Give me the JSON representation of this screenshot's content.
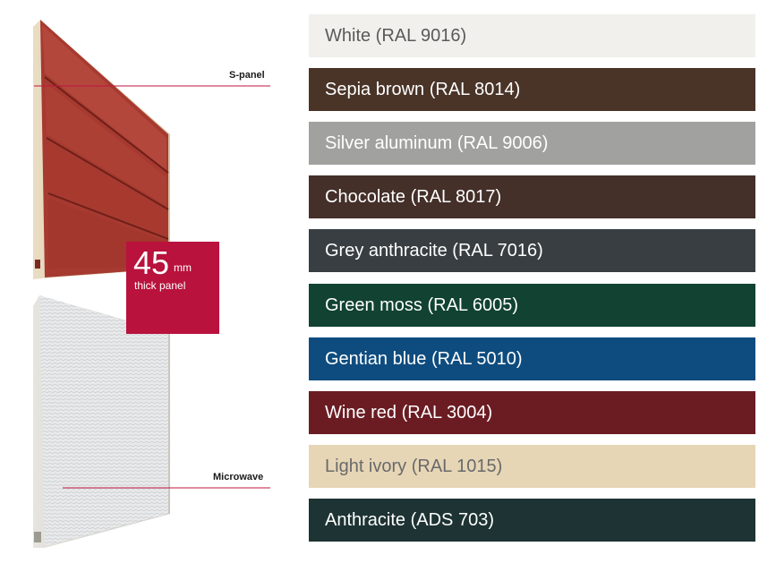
{
  "panel_labels": {
    "s_panel": "S-panel",
    "microwave": "Microwave"
  },
  "badge": {
    "number": "45",
    "unit": "mm",
    "caption": "thick panel",
    "color": "#b8123d"
  },
  "colors": [
    {
      "label": "White (RAL 9016)",
      "bg": "#f1f0ec",
      "fg": "#5a5a5a"
    },
    {
      "label": "Sepia brown (RAL 8014)",
      "bg": "#4a3428",
      "fg": "#ffffff"
    },
    {
      "label": "Silver aluminum (RAL 9006)",
      "bg": "#a1a1a0",
      "fg": "#ffffff"
    },
    {
      "label": "Chocolate (RAL 8017)",
      "bg": "#442f29",
      "fg": "#ffffff"
    },
    {
      "label": "Grey anthracite (RAL 7016)",
      "bg": "#383e42",
      "fg": "#ffffff"
    },
    {
      "label": "Green moss (RAL 6005)",
      "bg": "#114232",
      "fg": "#ffffff"
    },
    {
      "label": "Gentian blue (RAL 5010)",
      "bg": "#0e4c7f",
      "fg": "#ffffff"
    },
    {
      "label": "Wine red (RAL 3004)",
      "bg": "#6b1c23",
      "fg": "#ffffff"
    },
    {
      "label": "Light ivory (RAL 1015)",
      "bg": "#e6d6b6",
      "fg": "#6a6a6a"
    },
    {
      "label": "Anthracite (ADS 703)",
      "bg": "#1e3333",
      "fg": "#ffffff"
    }
  ]
}
